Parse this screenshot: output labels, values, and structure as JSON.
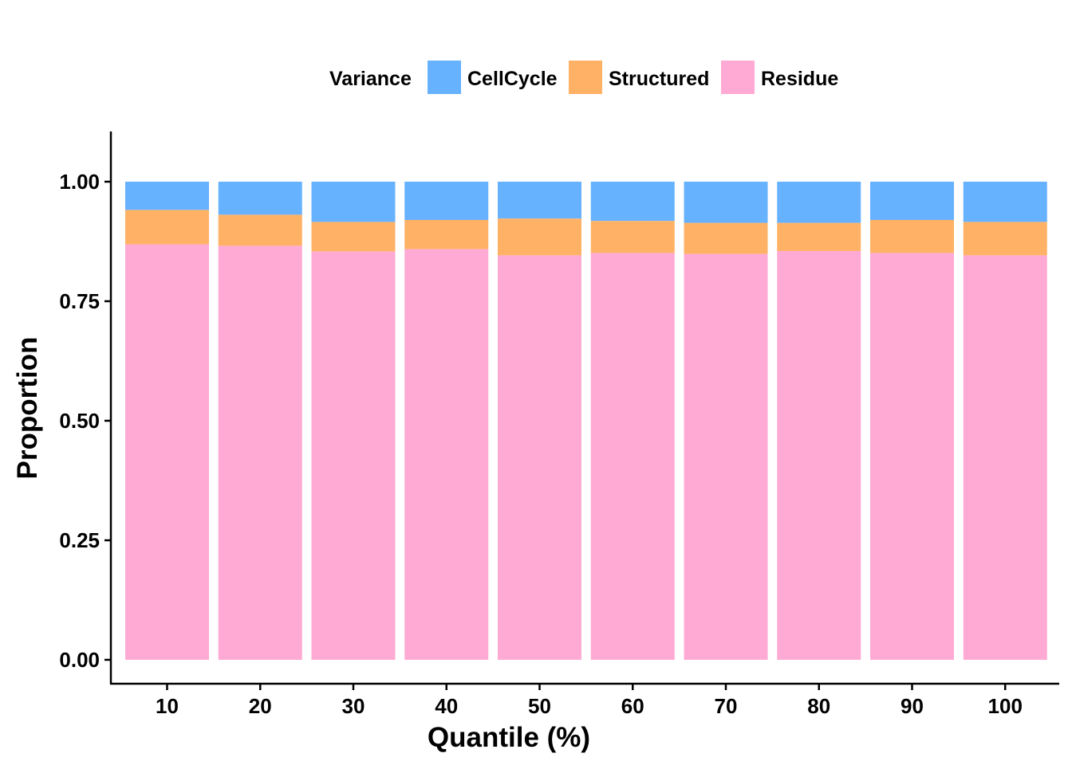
{
  "chart_data": {
    "type": "bar",
    "stacked": true,
    "categories": [
      "10",
      "20",
      "30",
      "40",
      "50",
      "60",
      "70",
      "80",
      "90",
      "100"
    ],
    "series": [
      {
        "name": "Residue",
        "color": "#FFAAD4",
        "values": [
          0.869,
          0.866,
          0.854,
          0.859,
          0.846,
          0.851,
          0.849,
          0.855,
          0.851,
          0.846
        ]
      },
      {
        "name": "Structured",
        "color": "#FFB266",
        "values": [
          0.072,
          0.065,
          0.062,
          0.061,
          0.077,
          0.067,
          0.065,
          0.059,
          0.069,
          0.07
        ]
      },
      {
        "name": "CellCycle",
        "color": "#66B2FF",
        "values": [
          0.059,
          0.069,
          0.084,
          0.08,
          0.077,
          0.082,
          0.086,
          0.086,
          0.08,
          0.084
        ]
      }
    ],
    "legend": {
      "title": "Variance",
      "items": [
        "CellCycle",
        "Structured",
        "Residue"
      ],
      "position": "top"
    },
    "xlabel": "Quantile (%)",
    "ylabel": "Proportion",
    "ylim": [
      0,
      1.1
    ],
    "yticks": [
      0,
      0.25,
      0.5,
      0.75,
      1
    ],
    "ytick_labels": [
      "0.00",
      "0.25",
      "0.50",
      "0.75",
      "1.00"
    ],
    "grid": false
  }
}
